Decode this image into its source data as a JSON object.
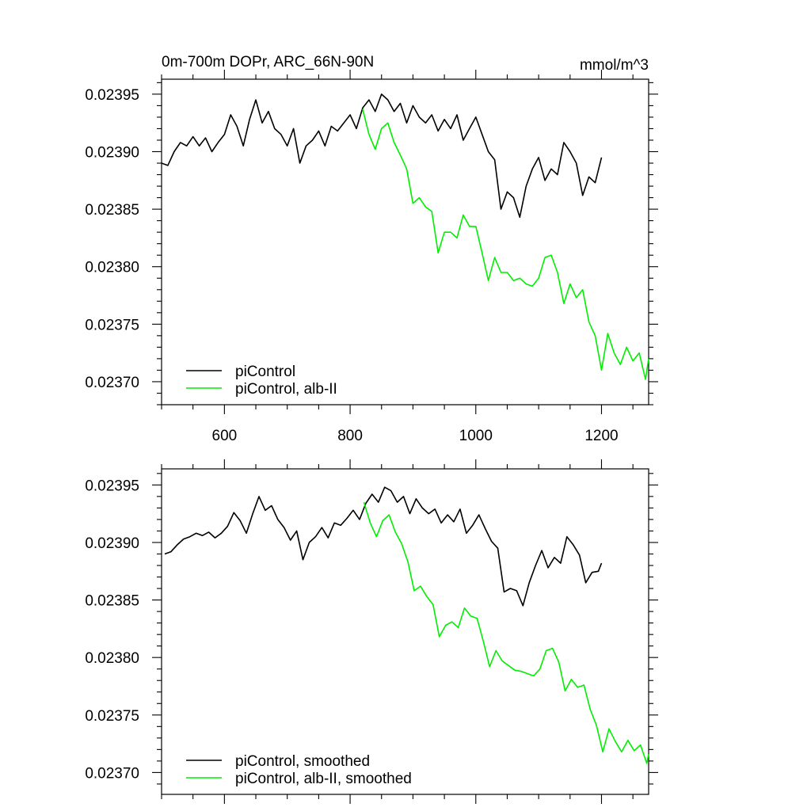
{
  "header": {
    "title": "0m-700m DOPr, ARC_66N-90N",
    "units": "mmol/m^3"
  },
  "colors": {
    "control": "#000000",
    "experiment": "#00ee00"
  },
  "chart_data": [
    {
      "type": "line",
      "xlim": [
        500,
        1275
      ],
      "ylim": [
        0.02368,
        0.023963
      ],
      "xticks": [
        600,
        800,
        1000,
        1200
      ],
      "xtick_labels": [
        "600",
        "800",
        "1000",
        "1200"
      ],
      "yticks": [
        0.02395,
        0.0239,
        0.02385,
        0.0238,
        0.02375,
        0.0237
      ],
      "ytick_labels": [
        "0.02395",
        "0.02390",
        "0.02385",
        "0.02380",
        "0.02375",
        "0.02370"
      ],
      "legend_position": "bottom-left",
      "series": [
        {
          "name": "piControl",
          "color": "#000000",
          "x": [
            500,
            510,
            520,
            530,
            540,
            550,
            560,
            570,
            580,
            590,
            600,
            610,
            620,
            630,
            640,
            650,
            660,
            670,
            680,
            690,
            700,
            710,
            720,
            730,
            740,
            750,
            760,
            770,
            780,
            790,
            800,
            810,
            820,
            830,
            840,
            850,
            860,
            870,
            880,
            890,
            900,
            910,
            920,
            930,
            940,
            950,
            960,
            970,
            980,
            990,
            1000,
            1010,
            1020,
            1030,
            1040,
            1050,
            1060,
            1070,
            1080,
            1090,
            1100,
            1110,
            1120,
            1130,
            1140,
            1150,
            1160,
            1170,
            1180,
            1190,
            1200
          ],
          "values": [
            0.02389,
            0.023888,
            0.0239,
            0.023908,
            0.023905,
            0.023913,
            0.023905,
            0.023912,
            0.0239,
            0.023908,
            0.023915,
            0.023932,
            0.023922,
            0.023905,
            0.023928,
            0.023945,
            0.023925,
            0.023935,
            0.02392,
            0.023915,
            0.023905,
            0.02392,
            0.02389,
            0.023905,
            0.02391,
            0.023918,
            0.023905,
            0.023922,
            0.023918,
            0.023925,
            0.023932,
            0.02392,
            0.023938,
            0.023945,
            0.023935,
            0.02395,
            0.023945,
            0.023935,
            0.023942,
            0.023925,
            0.02394,
            0.02393,
            0.023925,
            0.023932,
            0.023918,
            0.023928,
            0.02392,
            0.023932,
            0.02391,
            0.02392,
            0.02393,
            0.023915,
            0.0239,
            0.023893,
            0.02385,
            0.023865,
            0.02386,
            0.023843,
            0.02387,
            0.023885,
            0.023895,
            0.023875,
            0.023885,
            0.02388,
            0.023908,
            0.0239,
            0.02389,
            0.023862,
            0.023878,
            0.023873,
            0.023895
          ]
        },
        {
          "name": "piControl, alb-II",
          "color": "#00ee00",
          "x": [
            820,
            830,
            840,
            850,
            860,
            870,
            880,
            890,
            900,
            910,
            920,
            930,
            940,
            950,
            960,
            970,
            980,
            990,
            1000,
            1010,
            1020,
            1030,
            1040,
            1050,
            1060,
            1070,
            1080,
            1090,
            1100,
            1110,
            1120,
            1130,
            1140,
            1150,
            1160,
            1170,
            1180,
            1190,
            1200,
            1210,
            1220,
            1230,
            1240,
            1250,
            1260,
            1270,
            1275
          ],
          "values": [
            0.023937,
            0.023915,
            0.023902,
            0.02392,
            0.023925,
            0.023908,
            0.023897,
            0.023885,
            0.023855,
            0.02386,
            0.023852,
            0.023848,
            0.023812,
            0.02383,
            0.02383,
            0.023825,
            0.023845,
            0.023835,
            0.023835,
            0.023812,
            0.023788,
            0.023808,
            0.023795,
            0.023795,
            0.023788,
            0.02379,
            0.023785,
            0.023783,
            0.02379,
            0.023808,
            0.02381,
            0.023795,
            0.023768,
            0.023785,
            0.023773,
            0.02378,
            0.023752,
            0.02374,
            0.02371,
            0.023742,
            0.023725,
            0.023715,
            0.02373,
            0.023718,
            0.023725,
            0.023702,
            0.02372
          ]
        }
      ]
    },
    {
      "type": "line",
      "xlim": [
        500,
        1275
      ],
      "ylim": [
        0.023681,
        0.023964
      ],
      "xticks": [
        600,
        800,
        1000,
        1200
      ],
      "yticks": [
        0.02395,
        0.0239,
        0.02385,
        0.0238,
        0.02375,
        0.0237
      ],
      "ytick_labels": [
        "0.02395",
        "0.02390",
        "0.02385",
        "0.02380",
        "0.02375",
        "0.02370"
      ],
      "legend_position": "bottom-left",
      "series": [
        {
          "name": "piControl, smoothed",
          "color": "#000000",
          "x": [
            505,
            515,
            525,
            535,
            545,
            555,
            565,
            575,
            585,
            595,
            605,
            615,
            625,
            635,
            645,
            655,
            665,
            675,
            685,
            695,
            705,
            715,
            725,
            735,
            745,
            755,
            765,
            775,
            785,
            795,
            805,
            815,
            825,
            835,
            845,
            855,
            865,
            875,
            885,
            895,
            905,
            915,
            925,
            935,
            945,
            955,
            965,
            975,
            985,
            995,
            1005,
            1015,
            1025,
            1035,
            1045,
            1055,
            1065,
            1075,
            1085,
            1095,
            1105,
            1115,
            1125,
            1135,
            1145,
            1155,
            1165,
            1175,
            1185,
            1195,
            1200
          ],
          "values": [
            0.02389,
            0.023892,
            0.023898,
            0.023903,
            0.023905,
            0.023908,
            0.023906,
            0.023909,
            0.023904,
            0.023908,
            0.023914,
            0.023926,
            0.023919,
            0.023908,
            0.023925,
            0.02394,
            0.023928,
            0.023932,
            0.02392,
            0.023913,
            0.023902,
            0.02391,
            0.023885,
            0.0239,
            0.023905,
            0.023913,
            0.023904,
            0.023917,
            0.023915,
            0.023921,
            0.023928,
            0.02392,
            0.023934,
            0.023942,
            0.023935,
            0.023948,
            0.023945,
            0.023935,
            0.02394,
            0.023925,
            0.023938,
            0.02393,
            0.023925,
            0.023929,
            0.023917,
            0.023924,
            0.023918,
            0.023929,
            0.023908,
            0.023915,
            0.023924,
            0.023912,
            0.023901,
            0.023895,
            0.023857,
            0.02386,
            0.023858,
            0.023845,
            0.023865,
            0.02388,
            0.023893,
            0.023878,
            0.023887,
            0.023882,
            0.023905,
            0.023898,
            0.023889,
            0.023865,
            0.023874,
            0.023875,
            0.023882
          ]
        },
        {
          "name": "piControl, alb-II, smoothed",
          "color": "#00ee00",
          "x": [
            822,
            832,
            842,
            852,
            862,
            872,
            882,
            892,
            902,
            912,
            922,
            932,
            942,
            952,
            962,
            972,
            982,
            992,
            1002,
            1012,
            1022,
            1032,
            1042,
            1052,
            1062,
            1072,
            1082,
            1092,
            1102,
            1112,
            1122,
            1132,
            1142,
            1152,
            1162,
            1172,
            1182,
            1192,
            1202,
            1212,
            1222,
            1232,
            1242,
            1252,
            1262,
            1272,
            1275
          ],
          "values": [
            0.023935,
            0.023917,
            0.023905,
            0.023919,
            0.023924,
            0.023909,
            0.023899,
            0.023883,
            0.023858,
            0.023862,
            0.023853,
            0.023846,
            0.023818,
            0.023828,
            0.023831,
            0.023826,
            0.023843,
            0.023836,
            0.023834,
            0.023814,
            0.023792,
            0.023806,
            0.023797,
            0.023793,
            0.023789,
            0.023788,
            0.023786,
            0.023784,
            0.02379,
            0.023806,
            0.023808,
            0.023796,
            0.023771,
            0.023781,
            0.023774,
            0.023776,
            0.023755,
            0.023741,
            0.023718,
            0.023738,
            0.023727,
            0.023718,
            0.023728,
            0.023719,
            0.023724,
            0.023708,
            0.023716
          ]
        }
      ]
    }
  ]
}
